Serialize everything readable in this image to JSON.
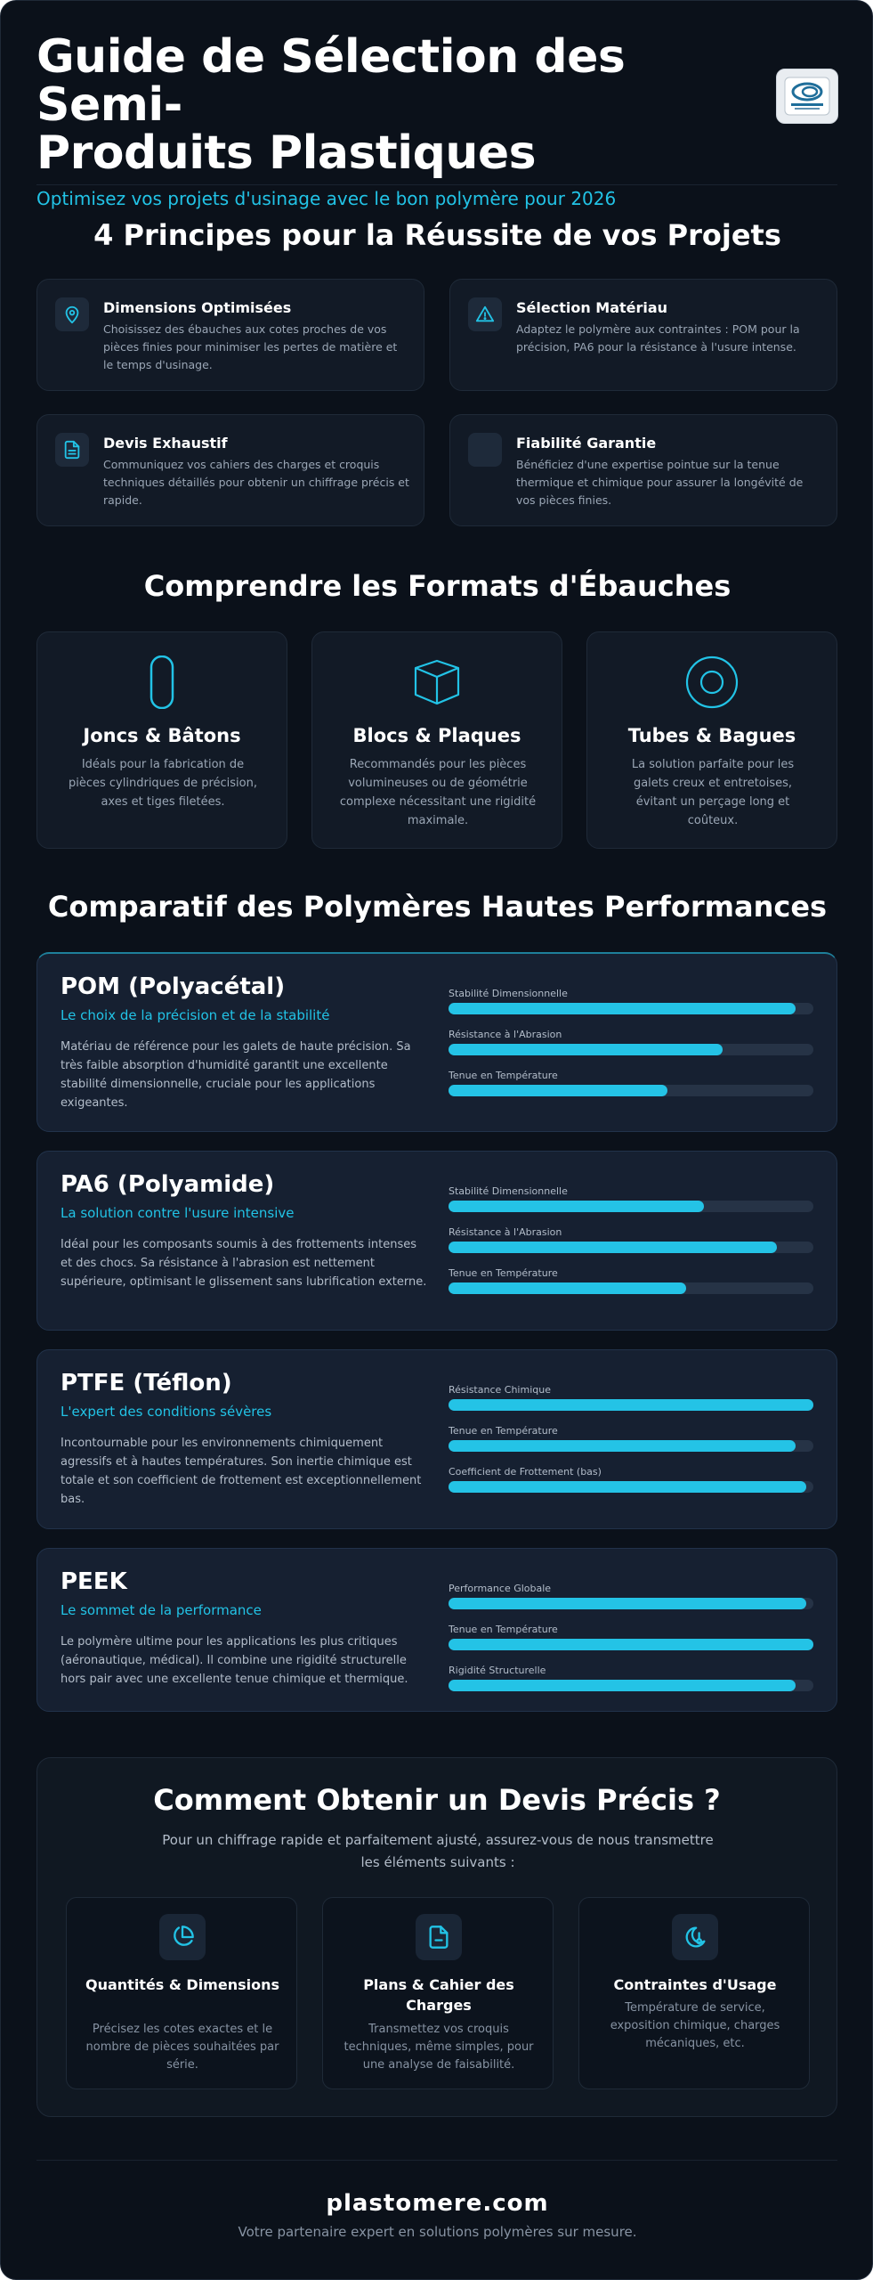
{
  "header": {
    "title_line1": "Guide de Sélection des Semi-",
    "title_line2": "Produits Plastiques",
    "subtitle": "Optimisez vos projets d'usinage avec le bon polymère pour 2026",
    "logo_icon": "plastomere-logo-icon"
  },
  "principles": {
    "title": "4 Principes pour la Réussite de vos Projets",
    "items": [
      {
        "icon": "map-pin-icon",
        "title": "Dimensions Optimisées",
        "desc": "Choisissez des ébauches aux cotes proches de vos pièces finies pour minimiser les pertes de matière et le temps d'usinage."
      },
      {
        "icon": "alert-triangle-icon",
        "title": "Sélection Matériau",
        "desc": "Adaptez le polymère aux contraintes : POM pour la précision, PA6 pour la résistance à l'usure intense."
      },
      {
        "icon": "file-text-icon",
        "title": "Devis Exhaustif",
        "desc": "Communiquez vos cahiers des charges et croquis techniques détaillés pour obtenir un chiffrage précis et rapide."
      },
      {
        "icon": "shield-icon",
        "title": "Fiabilité Garantie",
        "desc": "Bénéficiez d'une expertise pointue sur la tenue thermique et chimique pour assurer la longévité de vos pièces finies."
      }
    ]
  },
  "formats": {
    "title": "Comprendre les Formats d'Ébauches",
    "items": [
      {
        "icon": "rod-icon",
        "title": "Joncs & Bâtons",
        "desc": "Idéals pour la fabrication de pièces cylindriques de précision, axes et tiges filetées."
      },
      {
        "icon": "cube-icon",
        "title": "Blocs & Plaques",
        "desc": "Recommandés pour les pièces volumineuses ou de géométrie complexe nécessitant une rigidité maximale."
      },
      {
        "icon": "ring-icon",
        "title": "Tubes & Bagues",
        "desc": "La solution parfaite pour les galets creux et entretoises, évitant un perçage long et coûteux."
      }
    ]
  },
  "polymers": {
    "title": "Comparatif des Polymères Hautes Performances",
    "items": [
      {
        "name": "POM (Polyacétal)",
        "tagline": "Le choix de la précision et de la stabilité",
        "desc": "Matériau de référence pour les galets de haute précision. Sa très faible absorption d'humidité garantit une excellente stabilité dimensionnelle, cruciale pour les applications exigeantes.",
        "metrics": [
          {
            "label": "Stabilité Dimensionnelle",
            "value": 95
          },
          {
            "label": "Résistance à l'Abrasion",
            "value": 75
          },
          {
            "label": "Tenue en Température",
            "value": 60
          }
        ]
      },
      {
        "name": "PA6 (Polyamide)",
        "tagline": "La solution contre l'usure intensive",
        "desc": "Idéal pour les composants soumis à des frottements intenses et des chocs. Sa résistance à l'abrasion est nettement supérieure, optimisant le glissement sans lubrification externe.",
        "metrics": [
          {
            "label": "Stabilité Dimensionnelle",
            "value": 70
          },
          {
            "label": "Résistance à l'Abrasion",
            "value": 90
          },
          {
            "label": "Tenue en Température",
            "value": 65
          }
        ]
      },
      {
        "name": "PTFE (Téflon)",
        "tagline": "L'expert des conditions sévères",
        "desc": "Incontournable pour les environnements chimiquement agressifs et à hautes températures. Son inertie chimique est totale et son coefficient de frottement est exceptionnellement bas.",
        "metrics": [
          {
            "label": "Résistance Chimique",
            "value": 100
          },
          {
            "label": "Tenue en Température",
            "value": 95
          },
          {
            "label": "Coefficient de Frottement (bas)",
            "value": 98
          }
        ]
      },
      {
        "name": "PEEK",
        "tagline": "Le sommet de la performance",
        "desc": "Le polymère ultime pour les applications les plus critiques (aéronautique, médical). Il combine une rigidité structurelle hors pair avec une excellente tenue chimique et thermique.",
        "metrics": [
          {
            "label": "Performance Globale",
            "value": 98
          },
          {
            "label": "Tenue en Température",
            "value": 100
          },
          {
            "label": "Rigidité Structurelle",
            "value": 95
          }
        ]
      }
    ]
  },
  "quote": {
    "title": "Comment Obtenir un Devis Précis ?",
    "desc": "Pour un chiffrage rapide et parfaitement ajusté, assurez-vous de nous transmettre les éléments suivants :",
    "items": [
      {
        "icon": "pie-chart-icon",
        "title": "Quantités & Dimensions",
        "desc": "Précisez les cotes exactes et le nombre de pièces souhaitées par série."
      },
      {
        "icon": "file-minus-icon",
        "title": "Plans & Cahier des Charges",
        "desc": "Transmettez vos croquis techniques, même simples, pour une analyse de faisabilité."
      },
      {
        "icon": "moon-thermometer-icon",
        "title": "Contraintes d'Usage",
        "desc": "Température de service, exposition chimique, charges mécaniques, etc."
      }
    ]
  },
  "footer": {
    "site": "plastomere.com",
    "tagline": "Votre partenaire expert en solutions polymères sur mesure."
  },
  "colors": {
    "accent": "#22c3e6",
    "background": "#0b111a",
    "card": "#121a26"
  }
}
